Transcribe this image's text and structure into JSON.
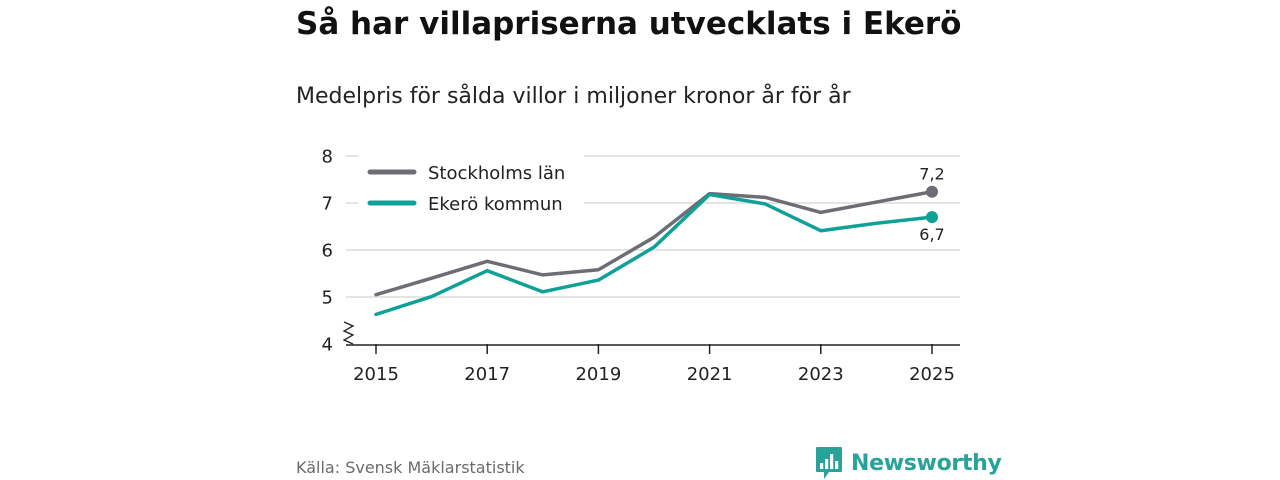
{
  "title": "Så har villapriserna utvecklats i Ekerö",
  "subtitle": "Medelpris för sålda villor i miljoner kronor år för år",
  "source": "Källa: Svensk Mäklarstatistik",
  "logo": {
    "name": "Newsworthy",
    "icon": "bar-chart-speech-bubble-icon",
    "color": "#29a39a"
  },
  "chart_data": {
    "type": "line",
    "x": [
      2015,
      2016,
      2017,
      2018,
      2019,
      2020,
      2021,
      2022,
      2023,
      2024,
      2025
    ],
    "xticks": [
      "2015",
      "2017",
      "2019",
      "2021",
      "2023",
      "2025"
    ],
    "yticks": [
      "4",
      "5",
      "6",
      "7",
      "8"
    ],
    "ylim": [
      4,
      8
    ],
    "xlim": [
      2015,
      2025
    ],
    "grid": true,
    "axis_break": true,
    "legend_position": "top-left",
    "series": [
      {
        "name": "Stockholms län",
        "color": "#6e6d75",
        "values": [
          5.05,
          5.4,
          5.76,
          5.47,
          5.58,
          6.27,
          7.2,
          7.12,
          6.8,
          7.02,
          7.24
        ],
        "end_label": "7,2"
      },
      {
        "name": "Ekerö kommun",
        "color": "#0fa197",
        "values": [
          4.63,
          5.01,
          5.56,
          5.11,
          5.36,
          6.06,
          7.18,
          6.98,
          6.41,
          6.57,
          6.7
        ],
        "end_label": "6,7"
      }
    ]
  }
}
